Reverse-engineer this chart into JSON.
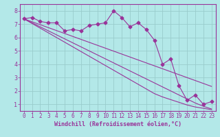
{
  "xlabel": "Windchill (Refroidissement éolien,°C)",
  "background_color": "#b3e8e8",
  "grid_color": "#99cccc",
  "line_color": "#993399",
  "axis_color": "#993399",
  "xlim": [
    -0.5,
    23.5
  ],
  "ylim": [
    0.5,
    8.5
  ],
  "xticks": [
    0,
    1,
    2,
    3,
    4,
    5,
    6,
    7,
    8,
    9,
    10,
    11,
    12,
    13,
    14,
    15,
    16,
    17,
    18,
    19,
    20,
    21,
    22,
    23
  ],
  "yticks": [
    1,
    2,
    3,
    4,
    5,
    6,
    7,
    8
  ],
  "series_main": [
    7.4,
    7.5,
    7.2,
    7.1,
    7.1,
    6.5,
    6.6,
    6.5,
    6.9,
    7.0,
    7.1,
    8.0,
    7.5,
    6.8,
    7.1,
    6.6,
    5.8,
    4.0,
    4.4,
    2.4,
    1.3,
    1.7,
    1.0,
    1.2
  ],
  "series_lin1": [
    7.4,
    7.18,
    6.96,
    6.74,
    6.52,
    6.3,
    6.08,
    5.86,
    5.64,
    5.42,
    5.2,
    4.98,
    4.76,
    4.54,
    4.32,
    4.1,
    3.88,
    3.66,
    3.44,
    3.22,
    3.0,
    2.78,
    2.56,
    2.34
  ],
  "series_lin2": [
    7.4,
    7.1,
    6.8,
    6.5,
    6.2,
    5.9,
    5.6,
    5.3,
    5.0,
    4.7,
    4.4,
    4.1,
    3.8,
    3.5,
    3.2,
    2.9,
    2.6,
    2.3,
    2.0,
    1.7,
    1.4,
    1.1,
    0.85,
    0.65
  ],
  "series_lin3": [
    7.4,
    7.05,
    6.7,
    6.35,
    6.0,
    5.65,
    5.3,
    4.95,
    4.6,
    4.25,
    3.9,
    3.55,
    3.2,
    2.85,
    2.5,
    2.15,
    1.8,
    1.55,
    1.35,
    1.15,
    0.95,
    0.8,
    0.7,
    0.6
  ],
  "xlabel_fontsize": 6,
  "tick_fontsize": 5.5
}
